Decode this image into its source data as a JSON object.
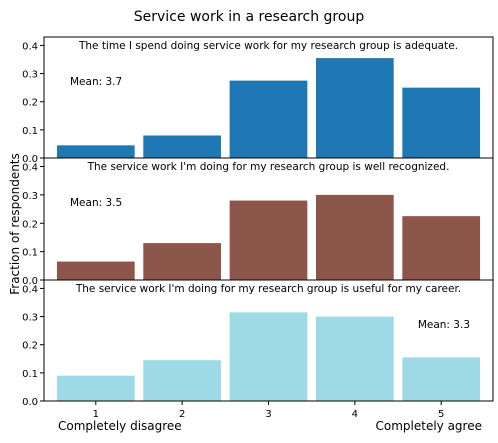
{
  "chart_data": {
    "type": "bar",
    "title": "Service work in a research group",
    "ylabel": "Fraction of respondents",
    "xlabel": "",
    "categories": [
      "1",
      "2",
      "3",
      "4",
      "5"
    ],
    "x_end_labels": {
      "left": "Completely disagree",
      "right": "Completely agree"
    },
    "ylim": [
      0,
      0.43
    ],
    "yticks": [
      "0.0",
      "0.1",
      "0.2",
      "0.3",
      "0.4"
    ],
    "grid": false,
    "panels": [
      {
        "title": "The time I spend doing service work for my research group is adequate.",
        "mean_label": "Mean: 3.7",
        "mean_position": "left",
        "color": "#1f77b4",
        "values": [
          0.045,
          0.08,
          0.275,
          0.355,
          0.25
        ]
      },
      {
        "title": "The service work I'm doing for my research group is well recognized.",
        "mean_label": "Mean: 3.5",
        "mean_position": "left",
        "color": "#8c564b",
        "values": [
          0.065,
          0.13,
          0.28,
          0.3,
          0.225
        ]
      },
      {
        "title": "The service work I'm doing for my research group is useful for my career.",
        "mean_label": "Mean: 3.3",
        "mean_position": "right",
        "color": "#9edae5",
        "values": [
          0.09,
          0.145,
          0.315,
          0.3,
          0.155
        ]
      }
    ]
  }
}
